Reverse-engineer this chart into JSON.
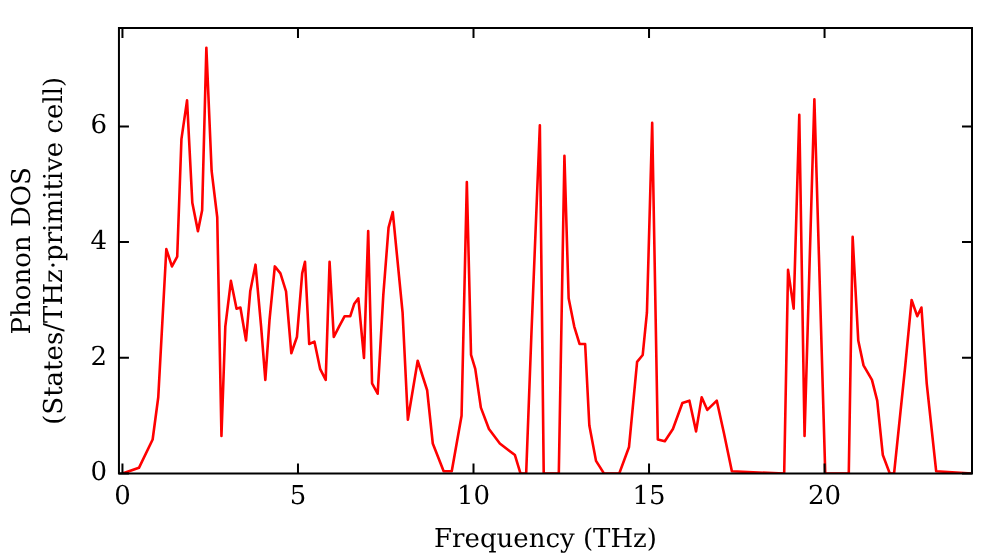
{
  "chart_data": {
    "type": "line",
    "xlabel": "Frequency (THz)",
    "ylabel": "Phonon DOS\n(States/THz·primitive cell)",
    "x": [
      0,
      0.47,
      0.86,
      1.02,
      1.25,
      1.41,
      1.56,
      1.68,
      1.84,
      1.99,
      2.15,
      2.27,
      2.39,
      2.54,
      2.7,
      2.82,
      2.93,
      3.09,
      3.25,
      3.36,
      3.52,
      3.64,
      3.79,
      3.95,
      4.07,
      4.19,
      4.34,
      4.5,
      4.66,
      4.81,
      4.97,
      5.12,
      5.2,
      5.32,
      5.47,
      5.63,
      5.79,
      5.9,
      6.02,
      6.17,
      6.33,
      6.49,
      6.6,
      6.72,
      6.88,
      7.0,
      7.11,
      7.27,
      7.43,
      7.58,
      7.7,
      7.98,
      8.13,
      8.41,
      8.68,
      8.84,
      9.15,
      9.38,
      9.66,
      9.81,
      9.93,
      10.05,
      10.21,
      10.44,
      10.75,
      11.18,
      11.34,
      11.5,
      11.65,
      11.89,
      12.0,
      12.43,
      12.59,
      12.71,
      12.87,
      13.02,
      13.18,
      13.3,
      13.49,
      13.72,
      14.15,
      14.43,
      14.66,
      14.82,
      14.94,
      15.09,
      15.25,
      15.45,
      15.68,
      15.95,
      16.15,
      16.34,
      16.5,
      16.66,
      16.93,
      17.13,
      17.36,
      18.85,
      18.96,
      19.12,
      19.28,
      19.43,
      19.71,
      20.02,
      20.69,
      20.8,
      20.96,
      21.11,
      21.35,
      21.5,
      21.66,
      21.86,
      21.98,
      22.29,
      22.48,
      22.64,
      22.76,
      22.91,
      23.18,
      24.2
    ],
    "series": [
      {
        "color": "#ff0000",
        "values": [
          0,
          0.1,
          0.59,
          1.32,
          3.88,
          3.58,
          3.75,
          5.78,
          6.45,
          4.68,
          4.19,
          4.55,
          7.36,
          5.23,
          4.43,
          0.65,
          2.54,
          3.33,
          2.85,
          2.87,
          2.3,
          3.15,
          3.61,
          2.54,
          1.62,
          2.66,
          3.58,
          3.46,
          3.15,
          2.08,
          2.36,
          3.46,
          3.66,
          2.24,
          2.28,
          1.81,
          1.62,
          3.66,
          2.36,
          2.54,
          2.72,
          2.72,
          2.93,
          3.03,
          2.0,
          4.19,
          1.56,
          1.38,
          3.08,
          4.25,
          4.52,
          2.78,
          0.93,
          1.95,
          1.44,
          0.52,
          0.04,
          0.04,
          1.0,
          5.04,
          2.05,
          1.81,
          1.14,
          0.77,
          0.52,
          0.32,
          0,
          0,
          2.42,
          6.02,
          0,
          0,
          5.49,
          3.03,
          2.54,
          2.24,
          2.24,
          0.83,
          0.22,
          0,
          0,
          0.46,
          1.93,
          2.05,
          2.78,
          6.06,
          0.59,
          0.56,
          0.77,
          1.22,
          1.26,
          0.73,
          1.32,
          1.1,
          1.26,
          0.71,
          0.04,
          0,
          3.52,
          2.85,
          6.2,
          0.65,
          6.47,
          0,
          0,
          4.09,
          2.3,
          1.87,
          1.62,
          1.26,
          0.32,
          0,
          0,
          1.81,
          3.0,
          2.72,
          2.87,
          1.56,
          0.04,
          0
        ]
      }
    ],
    "xlim": [
      -0.1,
      24.2
    ],
    "ylim": [
      0,
      7.7
    ],
    "xticks": [
      0,
      5,
      10,
      15,
      20
    ],
    "yticks": [
      0,
      2,
      4,
      6
    ],
    "marker": "none",
    "line_style": "solid"
  }
}
